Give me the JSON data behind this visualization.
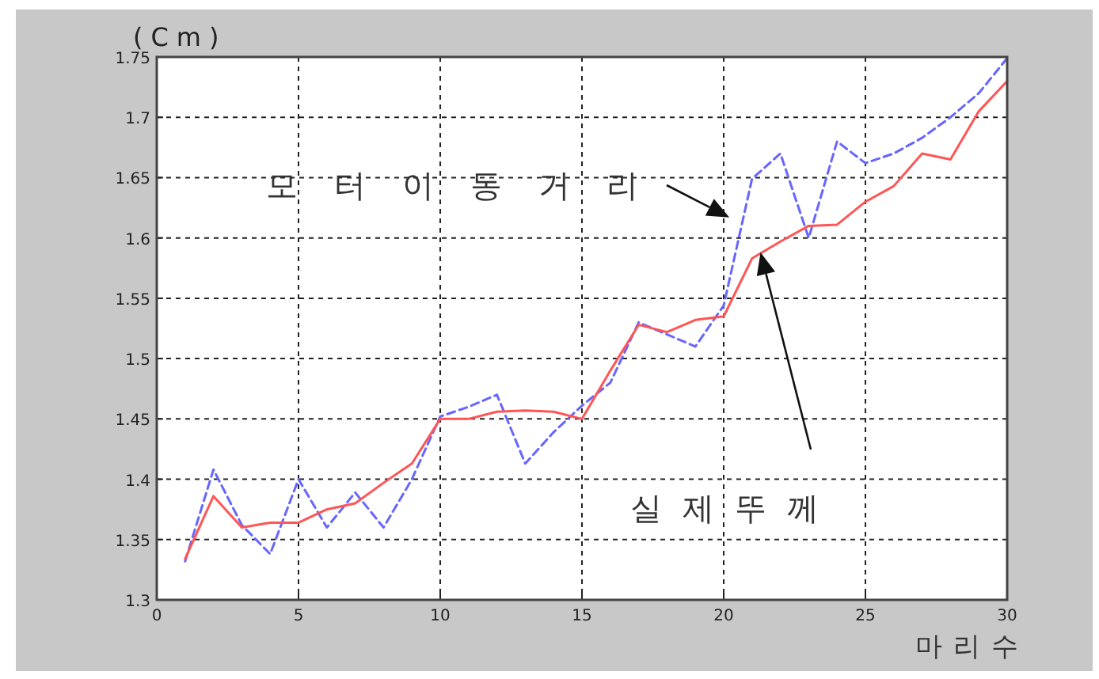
{
  "chart_data": {
    "type": "line",
    "ylabel": "(Cm)",
    "xlabel": "마리수",
    "x": [
      1,
      2,
      3,
      4,
      5,
      6,
      7,
      8,
      9,
      10,
      11,
      12,
      13,
      14,
      15,
      16,
      17,
      18,
      19,
      20,
      21,
      22,
      23,
      24,
      25,
      26,
      27,
      28,
      29,
      30
    ],
    "series": [
      {
        "name": "모터이동거리",
        "color": "#6666ff",
        "line_style": "dashed",
        "values": [
          1.332,
          1.408,
          1.362,
          1.338,
          1.4,
          1.36,
          1.389,
          1.36,
          1.4,
          1.452,
          1.46,
          1.47,
          1.413,
          1.439,
          1.461,
          1.48,
          1.53,
          1.52,
          1.51,
          1.544,
          1.649,
          1.67,
          1.6,
          1.68,
          1.662,
          1.67,
          1.683,
          1.7,
          1.72,
          1.749
        ]
      },
      {
        "name": "실제뚜께",
        "color": "#ff5555",
        "line_style": "solid",
        "values": [
          1.334,
          1.386,
          1.36,
          1.364,
          1.364,
          1.375,
          1.38,
          1.397,
          1.413,
          1.45,
          1.45,
          1.456,
          1.457,
          1.456,
          1.45,
          1.49,
          1.528,
          1.522,
          1.532,
          1.535,
          1.583,
          1.597,
          1.61,
          1.611,
          1.63,
          1.643,
          1.67,
          1.665,
          1.705,
          1.73
        ]
      }
    ],
    "xlim": [
      0,
      30
    ],
    "xticks": [
      0,
      5,
      10,
      15,
      20,
      25,
      30
    ],
    "ylim": [
      1.3,
      1.75
    ],
    "yticks": [
      1.3,
      1.35,
      1.4,
      1.45,
      1.5,
      1.55,
      1.6,
      1.65,
      1.7,
      1.75
    ],
    "grid": true,
    "legend": false,
    "marker": "none"
  }
}
